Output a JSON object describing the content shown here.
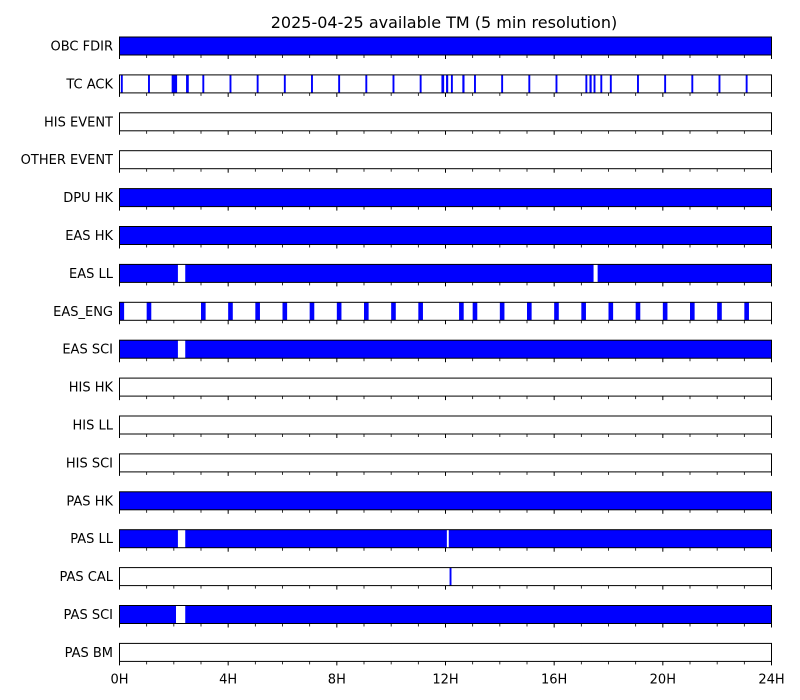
{
  "chart_data": {
    "type": "timeline",
    "title": "2025-04-25 available TM (5 min resolution)",
    "x_range_hours": [
      0,
      24
    ],
    "x_ticks": [
      {
        "hour": 0,
        "label": "0H"
      },
      {
        "hour": 4,
        "label": "4H"
      },
      {
        "hour": 8,
        "label": "8H"
      },
      {
        "hour": 12,
        "label": "12H"
      },
      {
        "hour": 16,
        "label": "16H"
      },
      {
        "hour": 20,
        "label": "20H"
      },
      {
        "hour": 24,
        "label": "24H"
      }
    ],
    "minor_tick_step_hours": 1,
    "bar_color": "#0000ff",
    "series": [
      {
        "name": "OBC FDIR",
        "intervals": [
          [
            0,
            24
          ]
        ]
      },
      {
        "name": "TC ACK",
        "intervals": [
          [
            0.05,
            0.12
          ],
          [
            1.05,
            1.12
          ],
          [
            1.92,
            2.12
          ],
          [
            2.45,
            2.55
          ],
          [
            3.05,
            3.12
          ],
          [
            4.05,
            4.12
          ],
          [
            5.05,
            5.12
          ],
          [
            6.05,
            6.12
          ],
          [
            7.05,
            7.12
          ],
          [
            8.05,
            8.12
          ],
          [
            9.05,
            9.12
          ],
          [
            10.05,
            10.12
          ],
          [
            11.05,
            11.12
          ],
          [
            11.85,
            11.95
          ],
          [
            12.02,
            12.1
          ],
          [
            12.2,
            12.27
          ],
          [
            12.62,
            12.7
          ],
          [
            13.05,
            13.12
          ],
          [
            14.05,
            14.12
          ],
          [
            15.05,
            15.12
          ],
          [
            16.05,
            16.12
          ],
          [
            17.15,
            17.22
          ],
          [
            17.3,
            17.38
          ],
          [
            17.45,
            17.52
          ],
          [
            17.7,
            17.77
          ],
          [
            18.05,
            18.12
          ],
          [
            19.05,
            19.12
          ],
          [
            20.05,
            20.12
          ],
          [
            21.05,
            21.12
          ],
          [
            22.05,
            22.12
          ],
          [
            23.05,
            23.12
          ]
        ]
      },
      {
        "name": "HIS EVENT",
        "intervals": []
      },
      {
        "name": "OTHER EVENT",
        "intervals": []
      },
      {
        "name": "DPU HK",
        "intervals": [
          [
            0,
            24
          ]
        ]
      },
      {
        "name": "EAS HK",
        "intervals": [
          [
            0,
            24
          ]
        ]
      },
      {
        "name": "EAS LL",
        "intervals": [
          [
            0,
            2.15
          ],
          [
            2.42,
            17.45
          ],
          [
            17.6,
            24
          ]
        ]
      },
      {
        "name": "EAS_ENG",
        "intervals": [
          [
            0,
            0.17
          ],
          [
            1.0,
            1.17
          ],
          [
            3.0,
            3.17
          ],
          [
            4.0,
            4.17
          ],
          [
            5.0,
            5.17
          ],
          [
            6.0,
            6.17
          ],
          [
            7.0,
            7.17
          ],
          [
            8.0,
            8.17
          ],
          [
            9.0,
            9.17
          ],
          [
            10.0,
            10.17
          ],
          [
            11.0,
            11.17
          ],
          [
            12.5,
            12.67
          ],
          [
            13.0,
            13.17
          ],
          [
            14.0,
            14.17
          ],
          [
            15.0,
            15.17
          ],
          [
            16.0,
            16.17
          ],
          [
            17.0,
            17.17
          ],
          [
            18.0,
            18.17
          ],
          [
            19.0,
            19.17
          ],
          [
            20.0,
            20.17
          ],
          [
            21.0,
            21.17
          ],
          [
            22.0,
            22.17
          ],
          [
            23.0,
            23.17
          ]
        ]
      },
      {
        "name": "EAS SCI",
        "intervals": [
          [
            0,
            2.15
          ],
          [
            2.42,
            24
          ]
        ]
      },
      {
        "name": "HIS HK",
        "intervals": []
      },
      {
        "name": "HIS LL",
        "intervals": []
      },
      {
        "name": "HIS SCI",
        "intervals": []
      },
      {
        "name": "PAS HK",
        "intervals": [
          [
            0,
            24
          ]
        ]
      },
      {
        "name": "PAS LL",
        "intervals": [
          [
            0,
            2.15
          ],
          [
            2.42,
            12.05
          ],
          [
            12.12,
            24
          ]
        ]
      },
      {
        "name": "PAS CAL",
        "intervals": [
          [
            12.15,
            12.22
          ]
        ]
      },
      {
        "name": "PAS SCI",
        "intervals": [
          [
            0,
            2.08
          ],
          [
            2.42,
            24
          ]
        ]
      },
      {
        "name": "PAS BM",
        "intervals": []
      }
    ]
  }
}
